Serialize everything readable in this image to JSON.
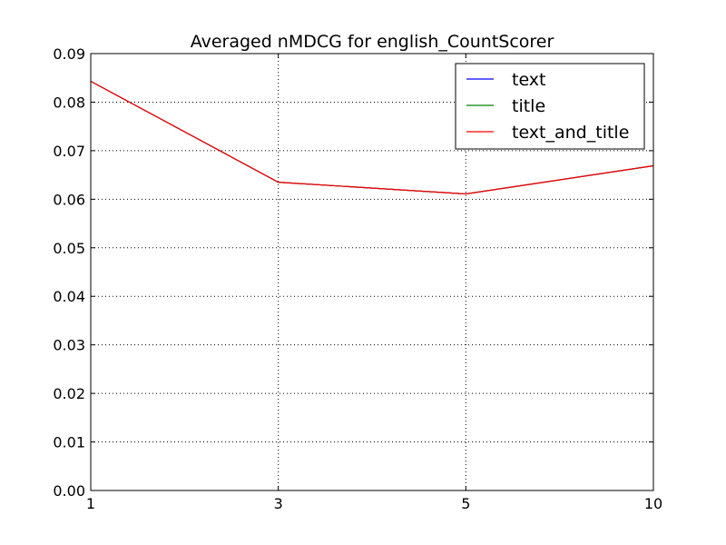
{
  "chart_data": {
    "type": "line",
    "title": "Averaged nMDCG for english_CountScorer",
    "xlabel": "",
    "ylabel": "",
    "x": [
      "1",
      "3",
      "5",
      "10"
    ],
    "ylim": [
      0.0,
      0.09
    ],
    "y_ticks": [
      "0.00",
      "0.01",
      "0.02",
      "0.03",
      "0.04",
      "0.05",
      "0.06",
      "0.07",
      "0.08",
      "0.09"
    ],
    "grid": true,
    "legend_position": "top-right",
    "series": [
      {
        "name": "text",
        "color": "#0000ff",
        "values": [
          0.0843,
          0.0635,
          0.0611,
          0.0669
        ]
      },
      {
        "name": "title",
        "color": "#008000",
        "values": [
          0.0843,
          0.0635,
          0.0611,
          0.0669
        ]
      },
      {
        "name": "text_and_title",
        "color": "#ff0000",
        "values": [
          0.0843,
          0.0635,
          0.0611,
          0.0669
        ]
      }
    ]
  }
}
